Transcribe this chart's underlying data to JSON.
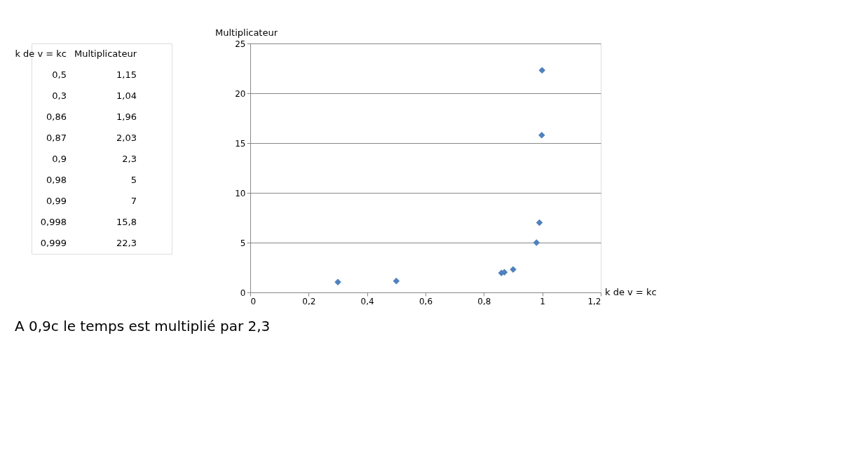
{
  "chart_data": {
    "type": "scatter",
    "xlabel": "k de v = kc",
    "ylabel": "Multiplicateur",
    "x": [
      0.5,
      0.3,
      0.86,
      0.87,
      0.9,
      0.98,
      0.99,
      0.998,
      0.999
    ],
    "series": [
      {
        "color": "#4f81bd",
        "values": [
          1.15,
          1.04,
          1.96,
          2.03,
          2.3,
          5,
          7,
          15.8,
          22.3
        ]
      }
    ],
    "xlim": [
      0,
      1.2
    ],
    "xticks": [
      0,
      {
        "value": 0.2,
        "label": "0,2"
      },
      {
        "value": 0.4,
        "label": "0,4"
      },
      {
        "value": 0.6,
        "label": "0,6"
      },
      {
        "value": 0.8,
        "label": "0,8"
      },
      1,
      {
        "value": 1.2,
        "label": "1,2"
      }
    ],
    "ylim": [
      0,
      25
    ],
    "yticks": [
      0,
      5,
      10,
      15,
      20,
      25
    ],
    "grid": "y",
    "marker": "diamond",
    "annotations": [
      "0,5",
      "1,15",
      "0,3",
      "1,04",
      "0,86",
      "1,96",
      "0,87",
      "2,03",
      "0,9",
      "2,3",
      "0,98",
      "5",
      "0,99",
      "7",
      "0,998",
      "15,8",
      "0,999",
      "22,3",
      "A 0,9c le temps est multiplié par 2,3"
    ]
  }
}
